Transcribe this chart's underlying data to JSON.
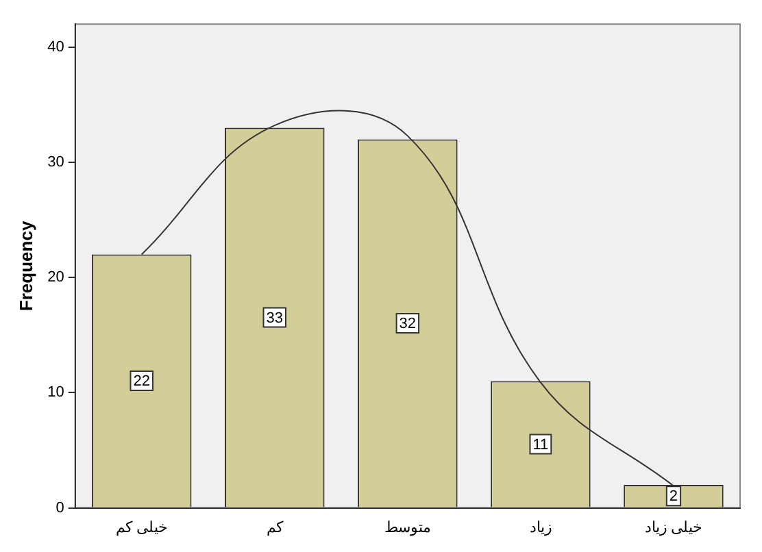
{
  "chart_data": {
    "type": "bar",
    "ylabel": "Frequency",
    "categories": [
      "خیلی کم",
      "کم",
      "متوسط",
      "زیاد",
      "خیلی زیاد"
    ],
    "series": [
      {
        "color": "#d3ce98",
        "values": [
          22,
          33,
          32,
          11,
          2
        ],
        "value_labels": [
          "22",
          "33",
          "32",
          "11",
          "2"
        ]
      },
      {
        "type": "line",
        "color": "#333333",
        "values": [
          22,
          33.2,
          32.3,
          10.9,
          1.9
        ]
      }
    ],
    "ylim": [
      0,
      42
    ],
    "yticks": [
      0,
      10,
      20,
      30,
      40
    ],
    "grid": false,
    "legend": false,
    "marker": "none"
  }
}
